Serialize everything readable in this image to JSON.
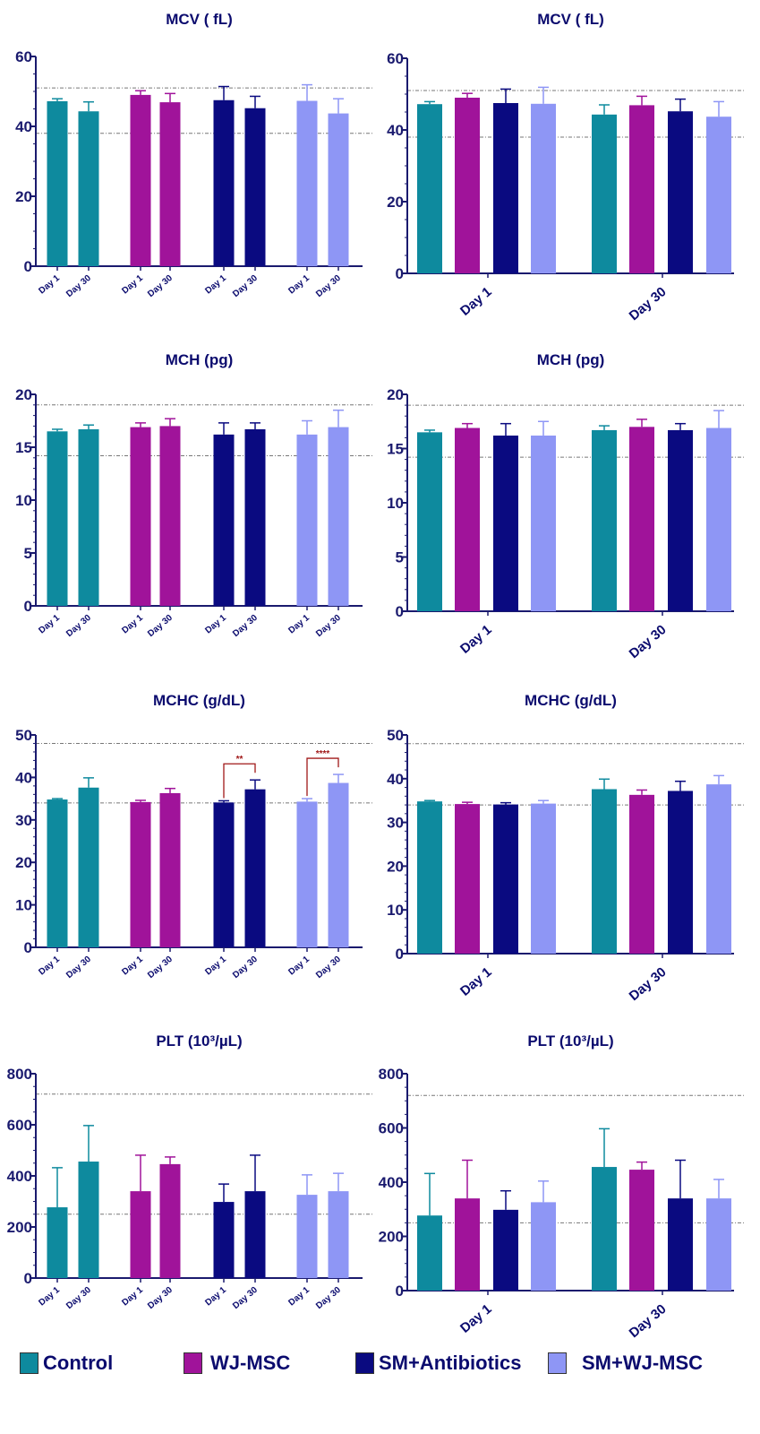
{
  "legend": [
    {
      "name": "Control",
      "color": "#0e8a9e"
    },
    {
      "name": "WJ-MSC",
      "color": "#a0139a"
    },
    {
      "name": "SM+Antibiotics",
      "color": "#0a0a80"
    },
    {
      "name": "SM+WJ-MSC",
      "color": "#8e96f5"
    }
  ],
  "chart_data": [
    {
      "type": "bar",
      "title": "MCV ( fL)",
      "ylim": [
        0,
        60
      ],
      "yticks": [
        "0",
        "20",
        "40",
        "60"
      ],
      "minor_step": 5,
      "x": [
        "Day 1",
        "Day 30"
      ],
      "reference_lines": [
        51,
        38
      ],
      "series": [
        {
          "name": "Control",
          "values": [
            47.2,
            44.3
          ],
          "error": [
            0.7,
            2.7
          ]
        },
        {
          "name": "WJ-MSC",
          "values": [
            49.0,
            46.9
          ],
          "error": [
            1.2,
            2.5
          ]
        },
        {
          "name": "SM+Antibiotics",
          "values": [
            47.5,
            45.2
          ],
          "error": [
            3.9,
            3.4
          ]
        },
        {
          "name": "SM+WJ-MSC",
          "values": [
            47.3,
            43.7
          ],
          "error": [
            4.6,
            4.2
          ]
        }
      ],
      "significance": []
    },
    {
      "type": "bar",
      "title": "MCH (pg)",
      "ylim": [
        0,
        20
      ],
      "yticks": [
        "0",
        "5",
        "10",
        "15",
        "20"
      ],
      "minor_step": 1,
      "x": [
        "Day 1",
        "Day 30"
      ],
      "reference_lines": [
        19,
        14.2
      ],
      "series": [
        {
          "name": "Control",
          "values": [
            16.5,
            16.7
          ],
          "error": [
            0.2,
            0.4
          ]
        },
        {
          "name": "WJ-MSC",
          "values": [
            16.9,
            17.0
          ],
          "error": [
            0.4,
            0.7
          ]
        },
        {
          "name": "SM+Antibiotics",
          "values": [
            16.2,
            16.7
          ],
          "error": [
            1.1,
            0.6
          ]
        },
        {
          "name": "SM+WJ-MSC",
          "values": [
            16.2,
            16.9
          ],
          "error": [
            1.3,
            1.6
          ]
        }
      ],
      "significance": []
    },
    {
      "type": "bar",
      "title": "MCHC (g/dL)",
      "ylim": [
        0,
        50
      ],
      "yticks": [
        "0",
        "10",
        "20",
        "30",
        "40",
        "50"
      ],
      "minor_step": 2,
      "x": [
        "Day 1",
        "Day 30"
      ],
      "reference_lines": [
        48,
        34
      ],
      "series": [
        {
          "name": "Control",
          "values": [
            34.8,
            37.6
          ],
          "error": [
            0.2,
            2.3
          ]
        },
        {
          "name": "WJ-MSC",
          "values": [
            34.2,
            36.3
          ],
          "error": [
            0.4,
            1.1
          ]
        },
        {
          "name": "SM+Antibiotics",
          "values": [
            34.1,
            37.2
          ],
          "error": [
            0.4,
            2.2
          ]
        },
        {
          "name": "SM+WJ-MSC",
          "values": [
            34.3,
            38.7
          ],
          "error": [
            0.7,
            2.0
          ]
        }
      ],
      "significance": [
        {
          "series": "SM+Antibiotics",
          "label": "**"
        },
        {
          "series": "SM+WJ-MSC",
          "label": "****"
        }
      ]
    },
    {
      "type": "bar",
      "title": "PLT (10³/µL)",
      "ylim": [
        0,
        800
      ],
      "yticks": [
        "0",
        "200",
        "400",
        "600",
        "800"
      ],
      "minor_step": 50,
      "x": [
        "Day 1",
        "Day 30"
      ],
      "reference_lines": [
        720,
        250
      ],
      "series": [
        {
          "name": "Control",
          "values": [
            277,
            456
          ],
          "error": [
            155,
            141
          ]
        },
        {
          "name": "WJ-MSC",
          "values": [
            340,
            446
          ],
          "error": [
            141,
            28
          ]
        },
        {
          "name": "SM+Antibiotics",
          "values": [
            298,
            340
          ],
          "error": [
            70,
            141
          ]
        },
        {
          "name": "SM+WJ-MSC",
          "values": [
            326,
            340
          ],
          "error": [
            78,
            70
          ]
        }
      ],
      "significance": []
    }
  ]
}
